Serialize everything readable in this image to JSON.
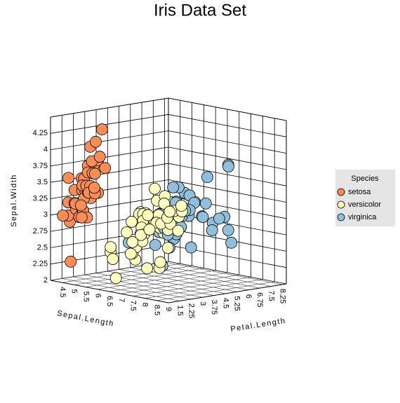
{
  "chart_data": {
    "type": "scatter3d",
    "title": "Iris Data Set",
    "x_label": "Sepal.Length",
    "y_label": "Sepal.Width",
    "z_label": "Petal.Length",
    "xlim": [
      4,
      9
    ],
    "ylim": [
      2,
      4.5
    ],
    "zlim": [
      0.75,
      8.5
    ],
    "xticks": [
      4.5,
      5,
      5.5,
      6,
      6.5,
      7,
      7.5,
      8,
      8.5,
      9
    ],
    "yticks": [
      2,
      2.25,
      2.5,
      2.75,
      3,
      3.25,
      3.5,
      3.75,
      4,
      4.25
    ],
    "zticks": [
      1.5,
      2.25,
      3,
      3.75,
      4.5,
      5.25,
      6,
      6.75,
      7.5,
      8.25
    ],
    "grid": true,
    "legend_title": "Species",
    "legend_position": "right",
    "series": [
      {
        "name": "setosa",
        "color": "#fc8d59",
        "x": [
          5.1,
          4.9,
          4.7,
          4.6,
          5.0,
          5.4,
          4.6,
          5.0,
          4.4,
          4.9,
          5.4,
          4.8,
          4.8,
          4.3,
          5.8,
          5.7,
          5.4,
          5.1,
          5.7,
          5.1,
          5.4,
          5.1,
          4.6,
          5.1,
          4.8,
          5.0,
          5.0,
          5.2,
          5.2,
          4.7,
          4.8,
          5.4,
          5.2,
          5.5,
          4.9,
          5.0,
          5.5,
          4.9,
          4.4,
          5.1,
          5.0,
          4.5,
          4.4,
          5.0,
          5.1,
          4.8,
          5.1,
          4.6,
          5.3,
          5.0
        ],
        "y": [
          3.5,
          3.0,
          3.2,
          3.1,
          3.6,
          3.9,
          3.4,
          3.4,
          2.9,
          3.1,
          3.7,
          3.4,
          3.0,
          3.0,
          4.0,
          4.4,
          3.9,
          3.5,
          3.8,
          3.8,
          3.4,
          3.7,
          3.6,
          3.3,
          3.4,
          3.0,
          3.4,
          3.5,
          3.4,
          3.2,
          3.1,
          3.4,
          4.1,
          4.2,
          3.1,
          3.2,
          3.5,
          3.6,
          3.0,
          3.4,
          3.5,
          2.3,
          3.2,
          3.5,
          3.8,
          3.0,
          3.8,
          3.2,
          3.7,
          3.3
        ],
        "z": [
          1.4,
          1.4,
          1.3,
          1.5,
          1.4,
          1.7,
          1.4,
          1.5,
          1.4,
          1.5,
          1.5,
          1.6,
          1.4,
          1.1,
          1.2,
          1.5,
          1.3,
          1.4,
          1.7,
          1.5,
          1.7,
          1.5,
          1.0,
          1.7,
          1.9,
          1.6,
          1.6,
          1.5,
          1.4,
          1.6,
          1.6,
          1.5,
          1.5,
          1.4,
          1.5,
          1.2,
          1.3,
          1.4,
          1.3,
          1.5,
          1.3,
          1.3,
          1.3,
          1.6,
          1.9,
          1.4,
          1.6,
          1.4,
          1.5,
          1.4
        ]
      },
      {
        "name": "versicolor",
        "color": "#ffffbf",
        "x": [
          7.0,
          6.4,
          6.9,
          5.5,
          6.5,
          5.7,
          6.3,
          4.9,
          6.6,
          5.2,
          5.0,
          5.9,
          6.0,
          6.1,
          5.6,
          6.7,
          5.6,
          5.8,
          6.2,
          5.6,
          5.9,
          6.1,
          6.3,
          6.1,
          6.4,
          6.6,
          6.8,
          6.7,
          6.0,
          5.7,
          5.5,
          5.5,
          5.8,
          6.0,
          5.4,
          6.0,
          6.7,
          6.3,
          5.6,
          5.5,
          5.5,
          6.1,
          5.8,
          5.0,
          5.6,
          5.7,
          5.7,
          6.2,
          5.1,
          5.7
        ],
        "y": [
          3.2,
          3.2,
          3.1,
          2.3,
          2.8,
          2.8,
          3.3,
          2.4,
          2.9,
          2.7,
          2.0,
          3.0,
          2.2,
          2.9,
          2.9,
          3.1,
          3.0,
          2.7,
          2.2,
          2.5,
          3.2,
          2.8,
          2.5,
          2.8,
          2.9,
          3.0,
          2.8,
          3.0,
          2.9,
          2.6,
          2.4,
          2.4,
          2.7,
          2.7,
          3.0,
          3.4,
          3.1,
          2.3,
          3.0,
          2.5,
          2.6,
          3.0,
          2.6,
          2.3,
          2.7,
          3.0,
          2.9,
          2.9,
          2.5,
          2.8
        ],
        "z": [
          4.7,
          4.5,
          4.9,
          4.0,
          4.6,
          4.5,
          4.7,
          3.3,
          4.6,
          3.9,
          3.5,
          4.2,
          4.0,
          4.7,
          3.6,
          4.4,
          4.5,
          4.1,
          4.5,
          3.9,
          4.8,
          4.0,
          4.9,
          4.7,
          4.3,
          4.4,
          4.8,
          5.0,
          4.5,
          3.5,
          3.8,
          3.7,
          3.9,
          5.1,
          4.5,
          4.5,
          4.7,
          4.4,
          4.1,
          4.0,
          4.4,
          4.6,
          4.0,
          3.3,
          4.2,
          4.2,
          4.2,
          4.3,
          3.0,
          4.1
        ]
      },
      {
        "name": "virginica",
        "color": "#91bfdb",
        "x": [
          6.3,
          5.8,
          7.1,
          6.3,
          6.5,
          7.6,
          4.9,
          7.3,
          6.7,
          7.2,
          6.5,
          6.4,
          6.8,
          5.7,
          5.8,
          6.4,
          6.5,
          7.7,
          7.7,
          6.0,
          6.9,
          5.6,
          7.7,
          6.3,
          6.7,
          7.2,
          6.2,
          6.1,
          6.4,
          7.2,
          7.4,
          7.9,
          6.4,
          6.3,
          6.1,
          7.7,
          6.3,
          6.4,
          6.0,
          6.9,
          6.7,
          6.9,
          5.8,
          6.8,
          6.7,
          6.7,
          6.3,
          6.5,
          6.2,
          5.9
        ],
        "y": [
          3.3,
          2.7,
          3.0,
          2.9,
          3.0,
          3.0,
          2.5,
          2.9,
          2.5,
          3.6,
          3.2,
          2.7,
          3.0,
          2.5,
          2.8,
          3.2,
          3.0,
          3.8,
          2.6,
          2.2,
          3.2,
          2.8,
          2.8,
          2.7,
          3.3,
          3.2,
          2.8,
          3.0,
          2.8,
          3.0,
          2.8,
          3.8,
          2.8,
          2.8,
          2.6,
          3.0,
          3.4,
          3.1,
          3.0,
          3.1,
          3.1,
          3.1,
          2.7,
          3.2,
          3.3,
          3.0,
          2.5,
          3.0,
          3.4,
          3.0
        ],
        "z": [
          6.0,
          5.1,
          5.9,
          5.6,
          5.8,
          6.6,
          4.5,
          6.3,
          5.8,
          6.1,
          5.1,
          5.3,
          5.5,
          5.0,
          5.1,
          5.3,
          5.5,
          6.7,
          6.9,
          5.0,
          5.7,
          4.9,
          6.7,
          4.9,
          5.7,
          6.0,
          4.8,
          4.9,
          5.6,
          5.8,
          6.1,
          6.4,
          5.6,
          5.1,
          5.6,
          6.1,
          5.6,
          5.5,
          4.8,
          5.4,
          5.6,
          5.1,
          5.1,
          5.9,
          5.7,
          5.2,
          5.0,
          5.2,
          5.4,
          5.1
        ]
      }
    ]
  }
}
